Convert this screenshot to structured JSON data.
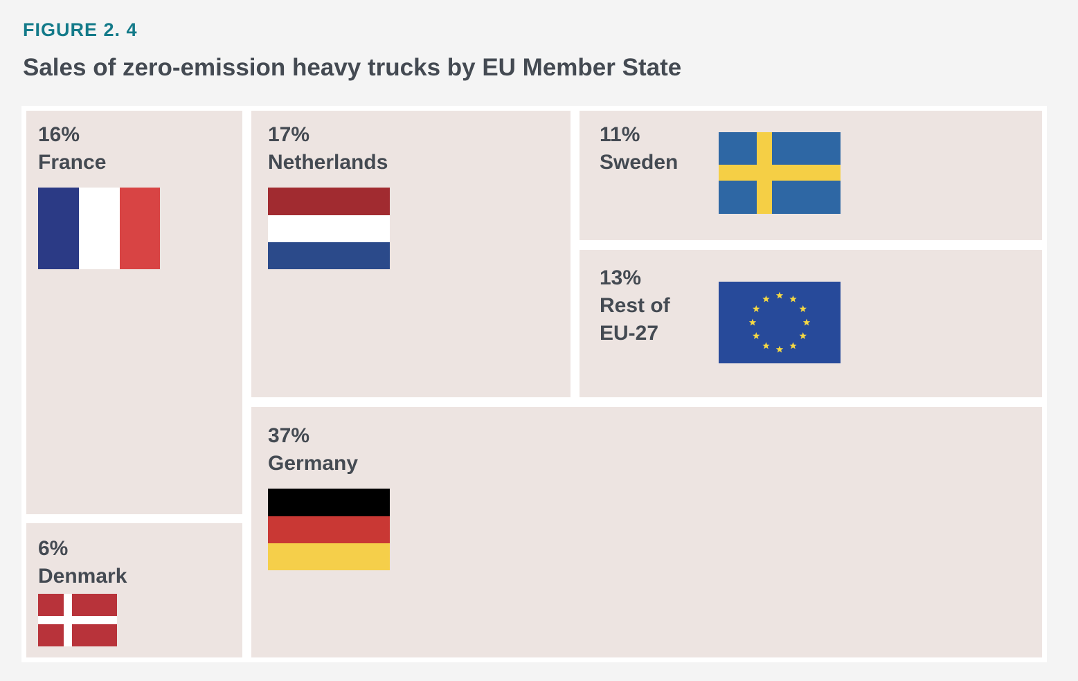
{
  "header": {
    "figure_label": "FIGURE 2. 4",
    "title": "Sales of zero-emission heavy trucks by EU Member State"
  },
  "chart_data": {
    "type": "treemap",
    "title": "Sales of zero-emission heavy trucks by EU Member State",
    "unit": "%",
    "items": [
      {
        "name": "France",
        "value": 16,
        "value_label": "16%",
        "name_lines": [
          "France"
        ],
        "flag": "france-flag"
      },
      {
        "name": "Netherlands",
        "value": 17,
        "value_label": "17%",
        "name_lines": [
          "Netherlands"
        ],
        "flag": "netherlands-flag"
      },
      {
        "name": "Sweden",
        "value": 11,
        "value_label": "11%",
        "name_lines": [
          "Sweden"
        ],
        "flag": "sweden-flag"
      },
      {
        "name": "Rest of EU-27",
        "value": 13,
        "value_label": "13%",
        "name_lines": [
          "Rest of",
          "EU-27"
        ],
        "flag": "eu-flag"
      },
      {
        "name": "Germany",
        "value": 37,
        "value_label": "37%",
        "name_lines": [
          "Germany"
        ],
        "flag": "germany-flag"
      },
      {
        "name": "Denmark",
        "value": 6,
        "value_label": "6%",
        "name_lines": [
          "Denmark"
        ],
        "flag": "denmark-flag"
      }
    ]
  },
  "colors": {
    "figure_label": "#137a89",
    "text": "#444a52",
    "tile_background": "#ede4e1",
    "page_background": "#f4f4f4",
    "tile_gap": "#ffffff"
  }
}
